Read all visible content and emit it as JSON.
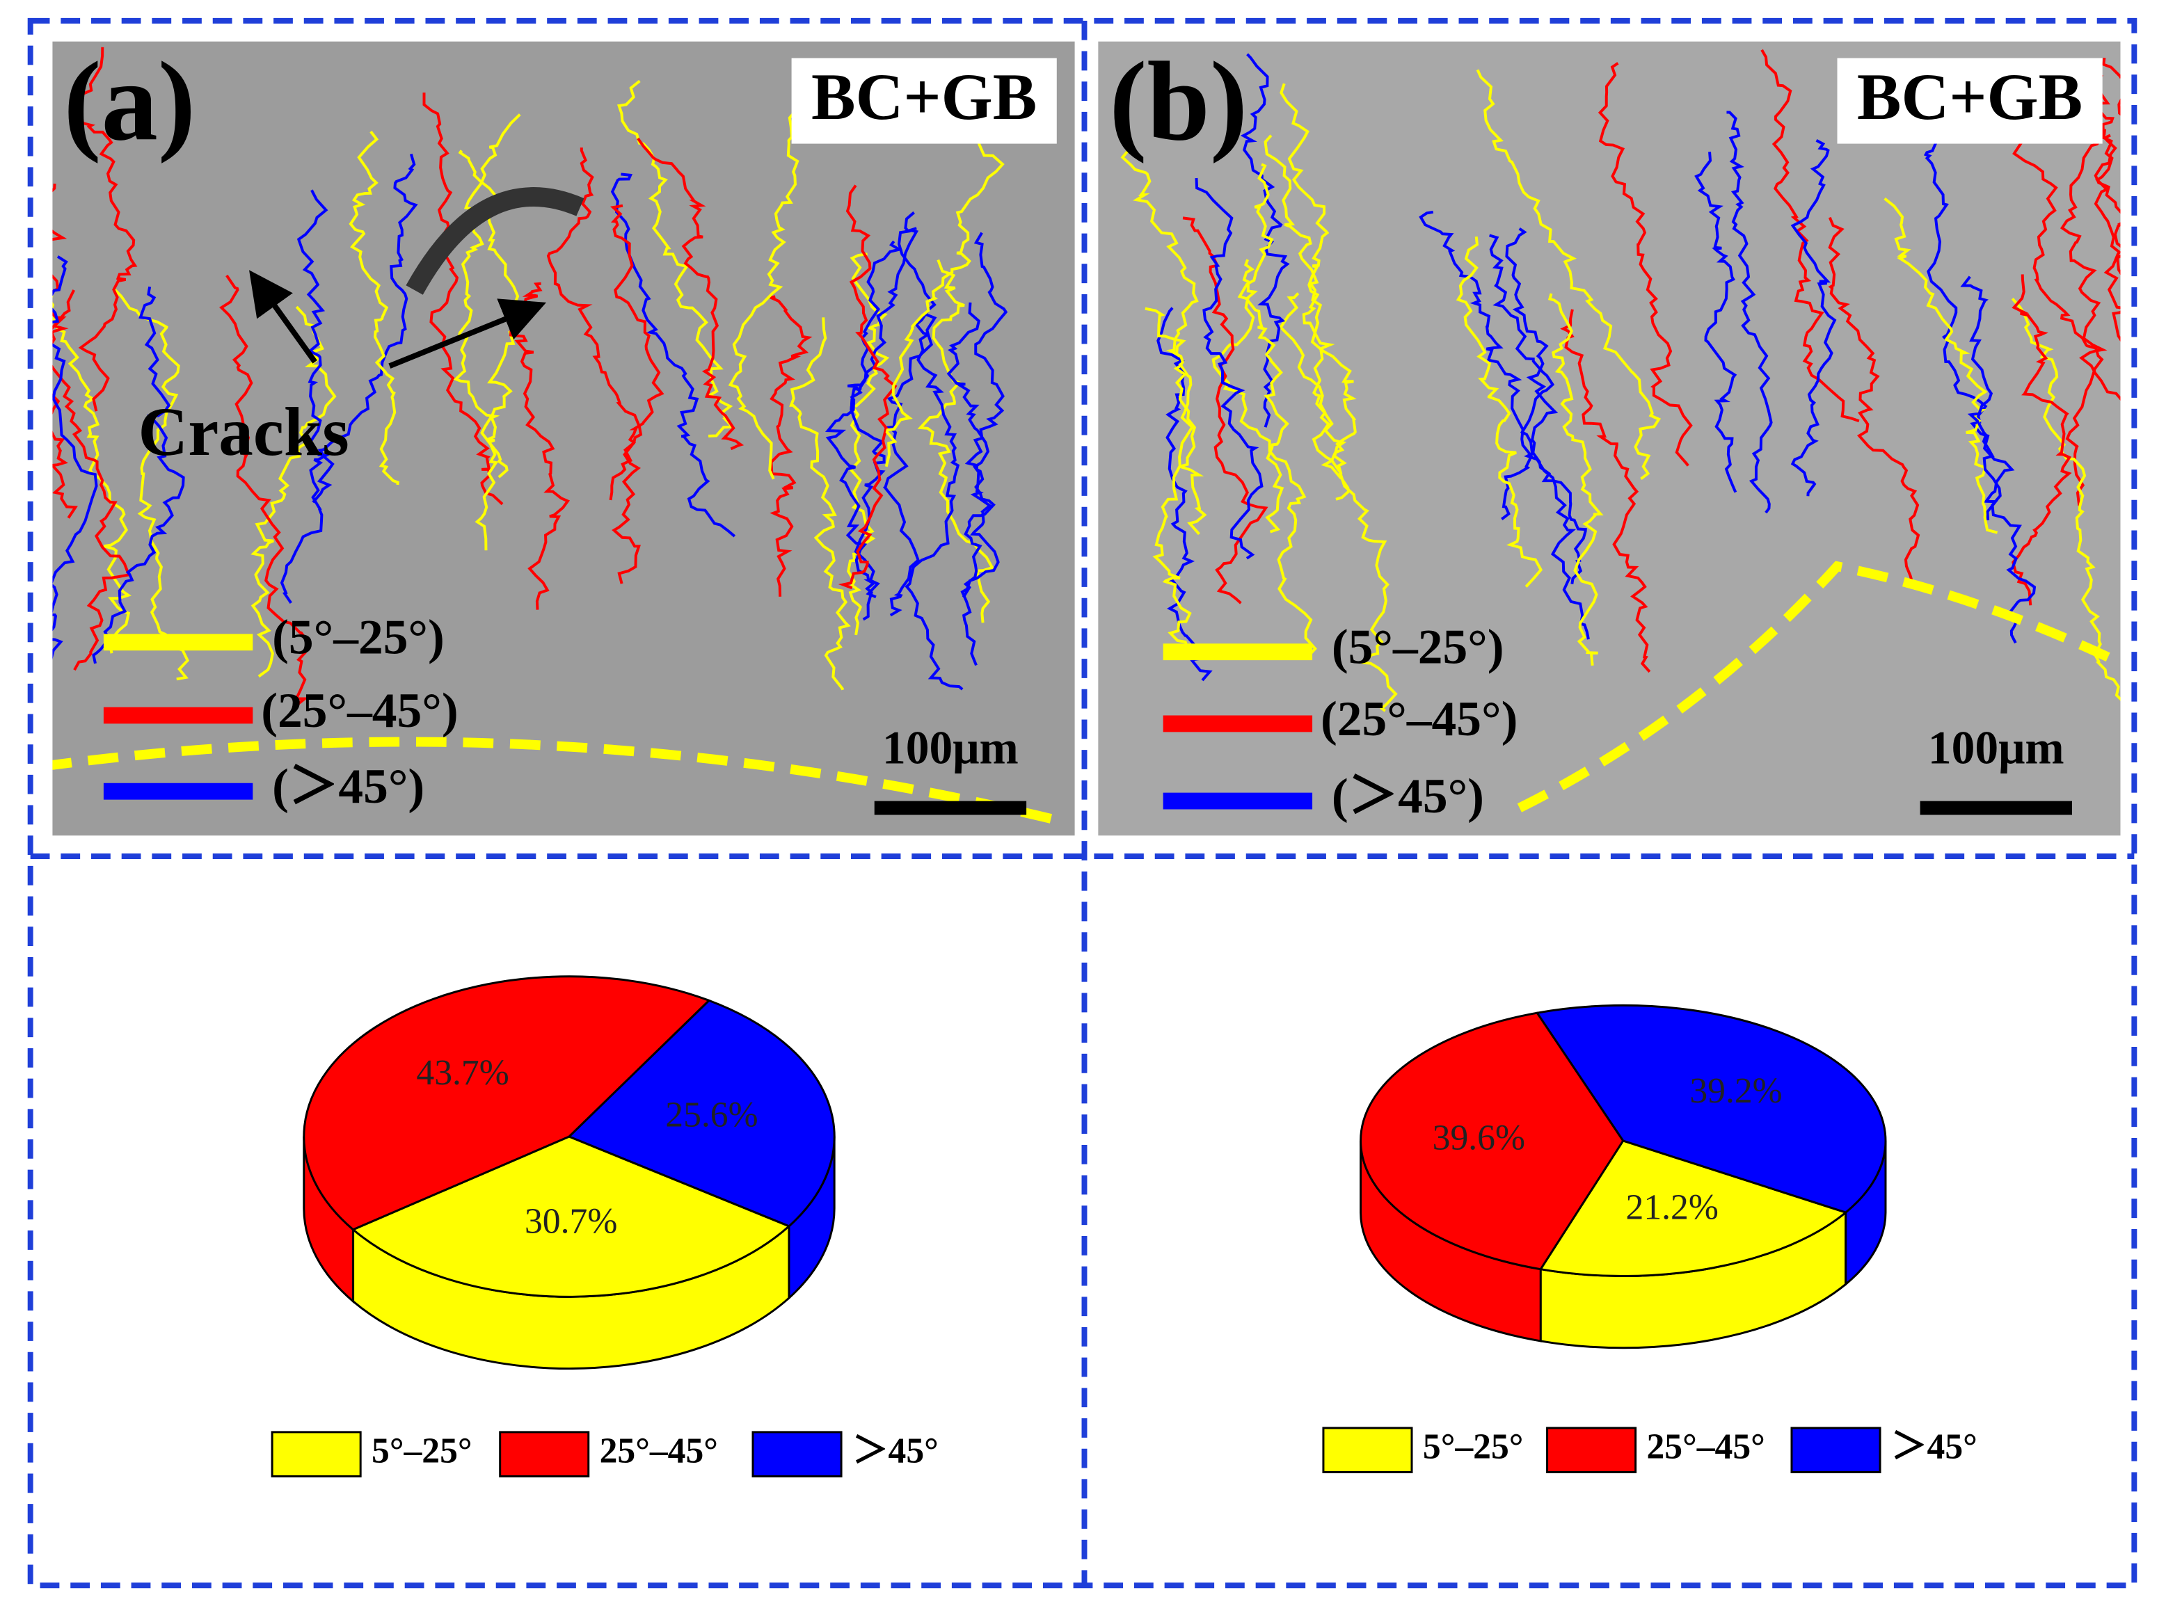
{
  "micrographs": [
    {
      "label": "(a)",
      "title": "BC+GB",
      "annotation": "Cracks",
      "legend": [
        "(5°–25°)",
        "(25°–45°)",
        "(＞45°)"
      ],
      "scale": "100μm"
    },
    {
      "label": "(b)",
      "title": "BC+GB",
      "legend": [
        "(5°–25°)",
        "(25°–45°)",
        "(＞45°)"
      ],
      "scale": "100μm"
    }
  ],
  "chart_data": [
    {
      "type": "pie",
      "categories": [
        "5°–25°",
        "25°–45°",
        "＞45°"
      ],
      "values": [
        30.7,
        43.7,
        25.6
      ],
      "value_labels": [
        "30.7%",
        "43.7%",
        "25.6%"
      ],
      "colors": [
        "#ffff00",
        "#ff0000",
        "#0000ff"
      ]
    },
    {
      "type": "pie",
      "categories": [
        "5°–25°",
        "25°–45°",
        "＞45°"
      ],
      "values": [
        21.2,
        39.6,
        39.2
      ],
      "value_labels": [
        "21.2%",
        "39.6%",
        "39.2%"
      ],
      "colors": [
        "#ffff00",
        "#ff0000",
        "#0000ff"
      ]
    }
  ]
}
